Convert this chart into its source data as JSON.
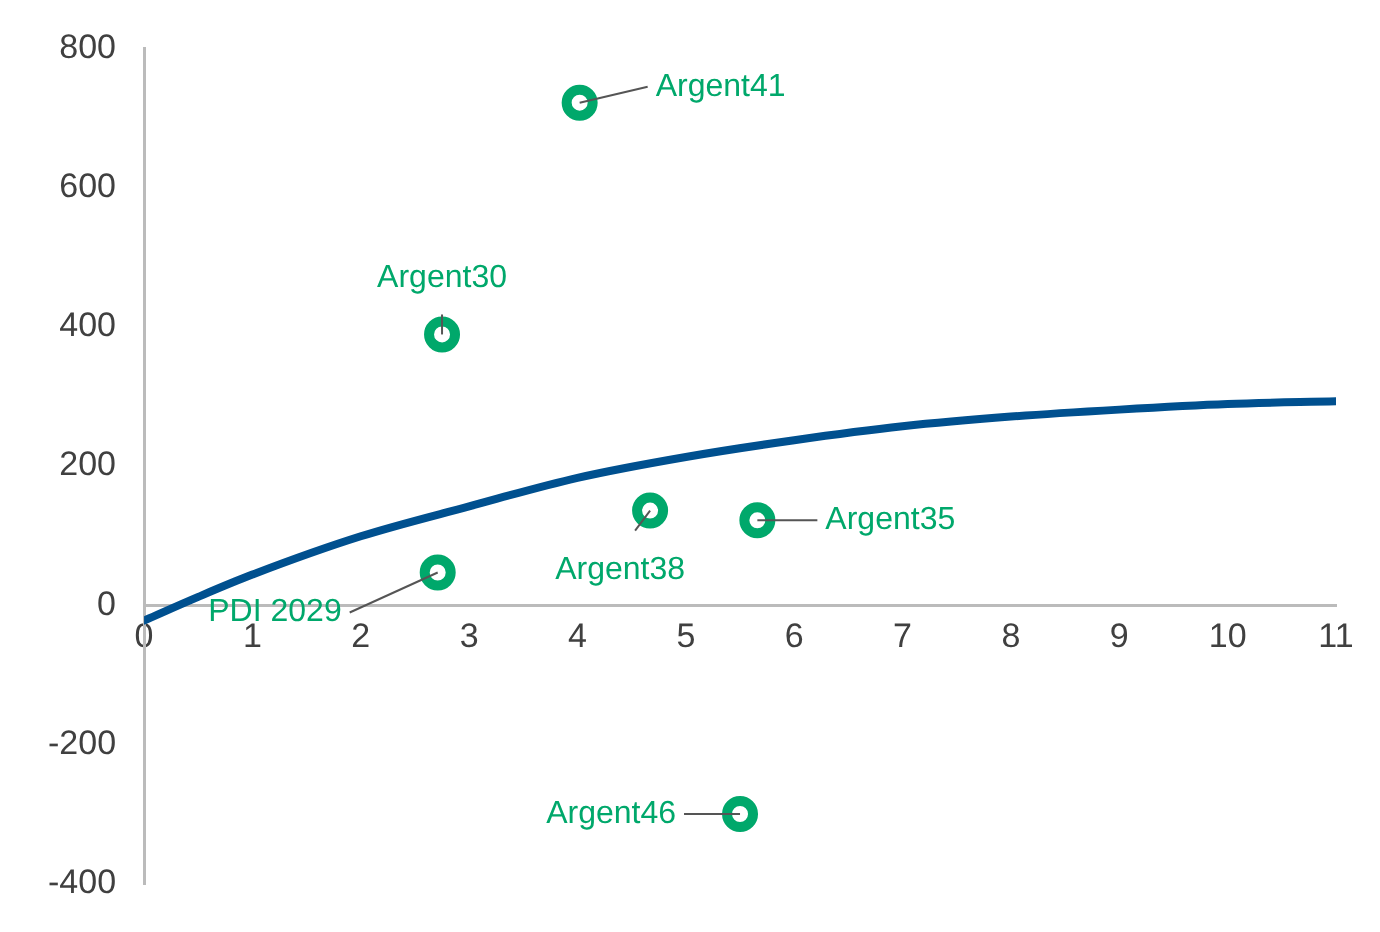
{
  "chart_data": {
    "type": "scatter",
    "xlim": [
      0,
      11
    ],
    "xticks": [
      0,
      1,
      2,
      3,
      4,
      5,
      6,
      7,
      8,
      9,
      10,
      11
    ],
    "ylim": [
      -400,
      800
    ],
    "yticks": [
      -400,
      -200,
      0,
      200,
      400,
      600,
      800
    ],
    "grid": false,
    "legend": false,
    "marker": "circle",
    "series": [
      {
        "color": "#00a86b",
        "x": [
          4.02,
          2.75,
          4.67,
          5.66,
          2.71,
          5.5
        ],
        "values": [
          722,
          389,
          136,
          122,
          47,
          -300
        ]
      },
      {
        "type": "line",
        "color": "#00508f",
        "marker": "none",
        "line_style": "solid",
        "x": [
          0,
          0.5,
          1,
          2,
          3,
          4,
          5,
          6,
          7,
          8,
          9,
          10,
          11
        ],
        "values": [
          -22,
          12,
          44,
          99,
          142,
          183,
          213,
          237,
          257,
          271,
          281,
          289,
          293
        ]
      }
    ],
    "annotations": [
      {
        "text": "Argent41",
        "x": 4.02,
        "y": 722
      },
      {
        "text": "Argent30",
        "x": 2.75,
        "y": 389
      },
      {
        "text": "Argent38",
        "x": 4.67,
        "y": 136
      },
      {
        "text": "Argent35",
        "x": 5.66,
        "y": 122
      },
      {
        "text": "PDI 2029",
        "x": 2.71,
        "y": 47
      },
      {
        "text": "Argent46",
        "x": 5.5,
        "y": -300
      }
    ]
  }
}
